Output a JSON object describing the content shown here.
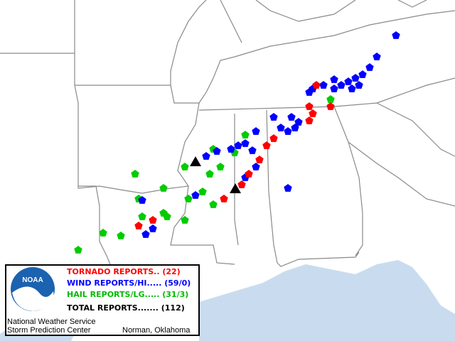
{
  "logo": {
    "text": "NOAA"
  },
  "legend": {
    "items": [
      "TORNADO REPORTS.. (22)",
      "WIND REPORTS/HI..... (59/0)",
      "HAIL REPORTS/LG..... (31/3)",
      "TOTAL REPORTS....... (112)"
    ]
  },
  "footer": {
    "line1": "National Weather Service",
    "line2": "Storm Prediction Center",
    "location": "Norman, Oklahoma"
  }
}
